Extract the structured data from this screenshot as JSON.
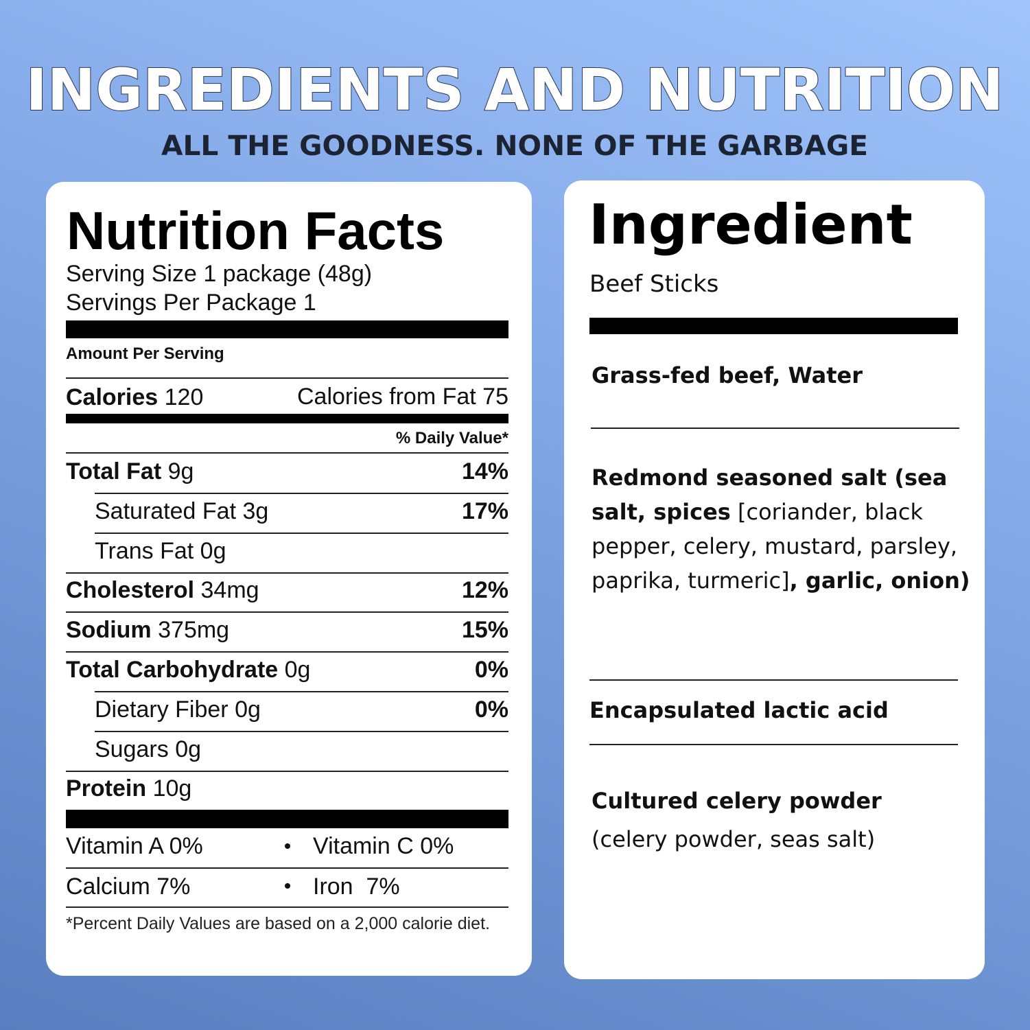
{
  "header": {
    "title": "INGREDIENTS AND NUTRITION",
    "subtitle": "ALL THE GOODNESS. NONE OF THE GARBAGE"
  },
  "nutrition": {
    "title": "Nutrition Facts",
    "serving_size": {
      "label": "Serving Size",
      "value": "1 package (48g)"
    },
    "servings_per_package": {
      "label": "Servings Per Package",
      "value": "1"
    },
    "amount_per_serving": "Amount Per Serving",
    "calories": {
      "label": "Calories",
      "value": "120"
    },
    "calories_from_fat": {
      "label": "Calories from Fat",
      "value": "75"
    },
    "daily_value_header": "% Daily Value*",
    "rows": [
      {
        "label": "Total Fat",
        "amount": "9g",
        "dv": "14%"
      },
      {
        "label": "Saturated Fat",
        "amount": "3g",
        "dv": "17%"
      },
      {
        "label": "Trans Fat",
        "amount": "0g"
      },
      {
        "label": "Cholesterol",
        "amount": "34mg",
        "dv": "12%"
      },
      {
        "label": "Sodium",
        "amount": "375mg",
        "dv": "15%"
      },
      {
        "label": "Total Carbohydrate",
        "amount": "0g",
        "dv": "0%"
      },
      {
        "label": "Dietary Fiber",
        "amount": "0g",
        "dv": "0%"
      },
      {
        "label": "Sugars",
        "amount": "0g"
      },
      {
        "label": "Protein",
        "amount": "10g"
      }
    ],
    "vitamins": [
      [
        "Vitamin A 0%",
        "Vitamin C 0%"
      ],
      [
        "Calcium 7%",
        "Iron  7%"
      ]
    ],
    "footnote": "*Percent Daily Values are based on a 2,000 calorie diet."
  },
  "ingredients": {
    "title": "Ingredient",
    "subtitle": "Beef Sticks",
    "items": [
      {
        "parts": [
          "Grass-fed beef, Water"
        ]
      },
      {
        "parts": [
          "Redmond seasoned salt (sea salt, spices",
          "[coriander, black pepper, celery, mustard, parsley, paprika, turmeric]",
          ", garlic, onion)"
        ]
      },
      {
        "parts": [
          "Encapsulated lactic acid"
        ]
      },
      {
        "parts": [
          "Cultured celery powder",
          "(celery powder, seas salt)"
        ]
      }
    ]
  }
}
